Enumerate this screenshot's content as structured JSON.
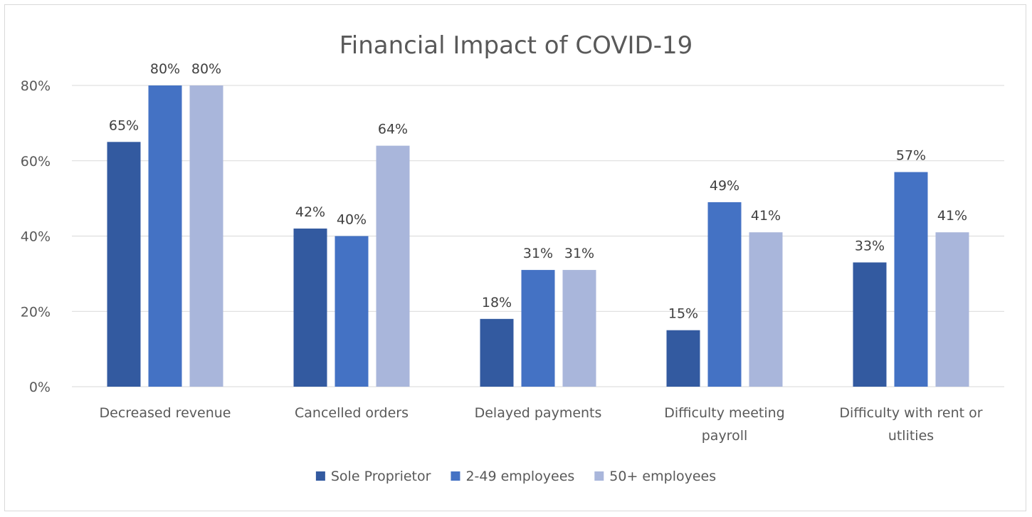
{
  "chart_data": {
    "type": "bar",
    "title": "Financial Impact of COVID-19",
    "xlabel": "",
    "ylabel": "",
    "categories": [
      [
        "Decreased revenue"
      ],
      [
        "Cancelled orders"
      ],
      [
        "Delayed payments"
      ],
      [
        "Difficulty meeting",
        "payroll"
      ],
      [
        "Difficulty with rent or",
        "utlities"
      ]
    ],
    "series": [
      {
        "name": "Sole Proprietor",
        "color": "#335aa0",
        "values": [
          65,
          42,
          18,
          15,
          33
        ]
      },
      {
        "name": "2-49 employees",
        "color": "#4472c4",
        "values": [
          80,
          40,
          31,
          49,
          57
        ]
      },
      {
        "name": "50+ employees",
        "color": "#a9b6db",
        "values": [
          80,
          64,
          31,
          41,
          41
        ]
      }
    ],
    "value_suffix": "%",
    "ylim": [
      0,
      80
    ],
    "yticks": [
      0,
      20,
      40,
      60,
      80
    ],
    "ytick_labels": [
      "0%",
      "20%",
      "40%",
      "60%",
      "80%"
    ],
    "grid": true,
    "legend_position": "bottom"
  }
}
